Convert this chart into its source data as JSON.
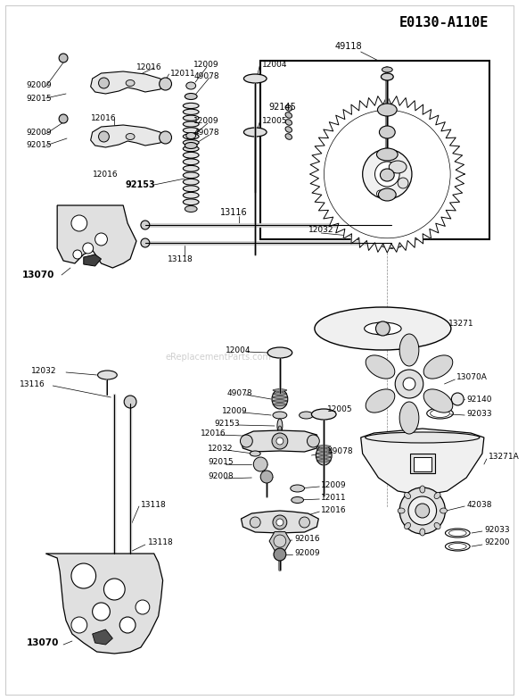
{
  "bg": "#ffffff",
  "tc": "#000000",
  "title": "E0130-A110E",
  "watermark": "eReplacementParts.com"
}
